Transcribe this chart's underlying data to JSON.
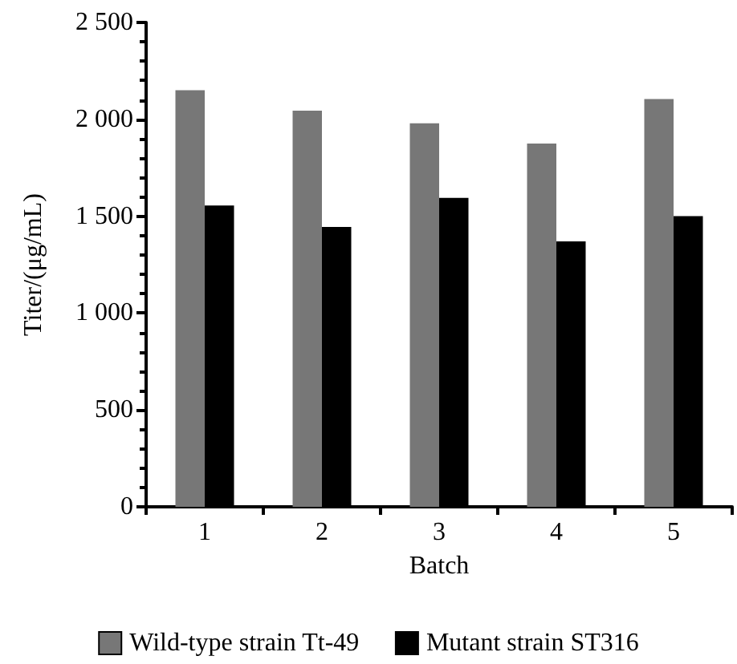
{
  "chart_data": {
    "type": "bar",
    "xlabel": "Batch",
    "ylabel": "Titer/(μg/mL)",
    "categories": [
      "1",
      "2",
      "3",
      "4",
      "5"
    ],
    "series": [
      {
        "name": "Wild-type strain Tt-49",
        "color": "#777777",
        "values": [
          2150,
          2045,
          1980,
          1875,
          2105
        ]
      },
      {
        "name": "Mutant strain ST316",
        "color": "#000000",
        "values": [
          1555,
          1445,
          1595,
          1370,
          1500
        ]
      }
    ],
    "ylim": [
      0,
      2500
    ],
    "yticks": [
      0,
      500,
      {
        "value": 1000,
        "label": "1 000"
      },
      {
        "value": 1500,
        "label": "1 500"
      },
      {
        "value": 2000,
        "label": "2 000"
      },
      {
        "value": 2500,
        "label": "2 500"
      }
    ],
    "grid": false,
    "legend": "bottom"
  }
}
